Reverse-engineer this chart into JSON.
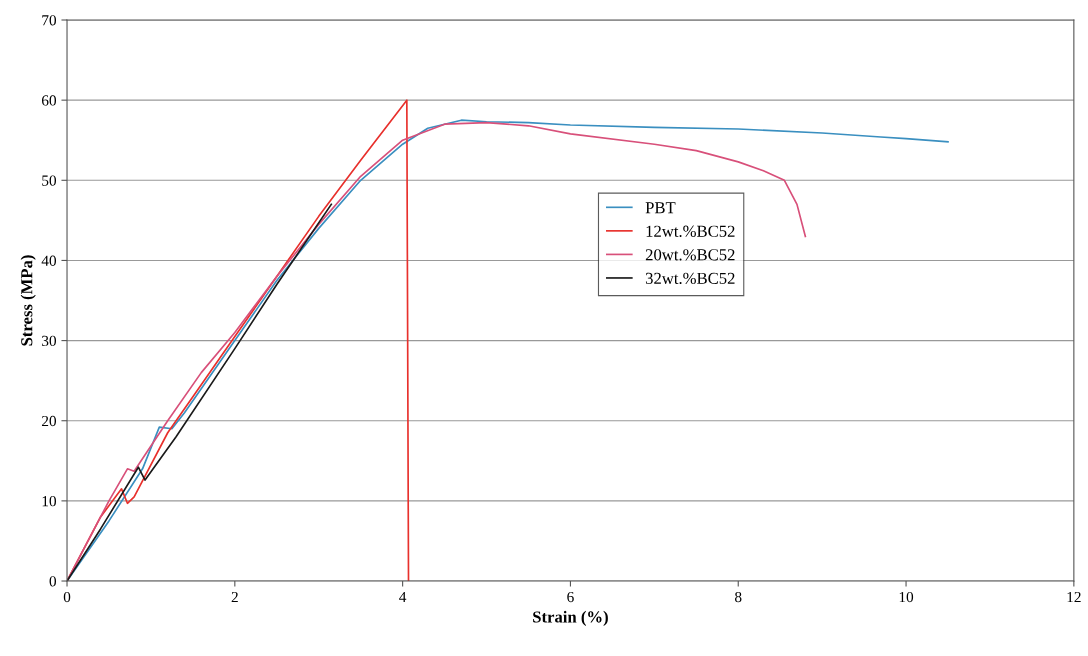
{
  "chart_data": {
    "type": "line",
    "xlabel": "Strain (%)",
    "ylabel": "Stress (MPa)",
    "xlim": [
      0,
      12
    ],
    "xticks": [
      0,
      2,
      4,
      6,
      8,
      10,
      12
    ],
    "ylim": [
      0,
      70
    ],
    "yticks": [
      0,
      10,
      20,
      30,
      40,
      50,
      60,
      70
    ],
    "grid": "y",
    "legend": "center",
    "line_style": "solid",
    "marker": "none",
    "series": [
      {
        "name": "PBT",
        "color": "#3a8fc0",
        "x": [
          0,
          0.5,
          0.9,
          1.1,
          1.25,
          1.4,
          2,
          2.5,
          3,
          3.5,
          4,
          4.3,
          4.7,
          5,
          5.5,
          6,
          7,
          8,
          9,
          9.7,
          10,
          10.5
        ],
        "values": [
          0,
          7.5,
          14,
          19.2,
          19,
          21,
          30,
          37.5,
          44,
          50,
          54.5,
          56.5,
          57.5,
          57.3,
          57.2,
          56.9,
          56.6,
          56.4,
          55.9,
          55.4,
          55.2,
          54.8
        ]
      },
      {
        "name": "12wt.%BC52",
        "color": "#e8302c",
        "x": [
          0,
          0.4,
          0.65,
          0.72,
          0.8,
          1.2,
          1.5,
          2,
          2.5,
          3,
          3.5,
          4.05,
          4.06,
          4.07
        ],
        "values": [
          0,
          8,
          11.5,
          9.7,
          10.5,
          18.5,
          23,
          30.5,
          38,
          45.5,
          52.5,
          60,
          30,
          0
        ]
      },
      {
        "name": "20wt.%BC52",
        "color": "#d8507a",
        "x": [
          0,
          0.3,
          0.5,
          0.72,
          0.8,
          1.2,
          1.6,
          2,
          2.5,
          3,
          3.5,
          4,
          4.5,
          5,
          5.5,
          6,
          7,
          7.5,
          8,
          8.3,
          8.55,
          8.7,
          8.8
        ],
        "values": [
          0,
          6,
          10,
          14,
          13.7,
          20,
          26,
          31,
          38,
          44.5,
          50.5,
          55,
          57,
          57.2,
          56.8,
          55.8,
          54.5,
          53.7,
          52.3,
          51.2,
          50,
          47,
          43
        ]
      },
      {
        "name": "32wt.%BC52",
        "color": "#1a1a1a",
        "x": [
          0,
          0.4,
          0.85,
          0.93,
          1.3,
          2,
          2.5,
          3.15
        ],
        "values": [
          0,
          6.5,
          14.2,
          12.6,
          18,
          29,
          37,
          47
        ]
      }
    ]
  }
}
